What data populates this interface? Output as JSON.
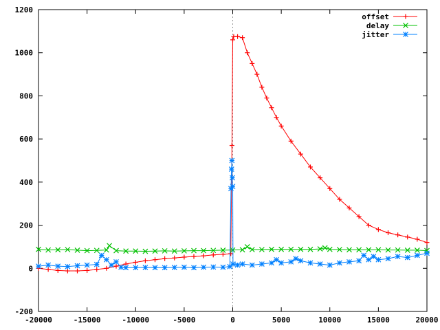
{
  "chart_data": {
    "type": "line",
    "title": "",
    "xlabel": "",
    "ylabel": "",
    "xlim": [
      -20000,
      20000
    ],
    "ylim": [
      -200,
      1200
    ],
    "x_ticks": [
      -20000,
      -15000,
      -10000,
      -5000,
      0,
      5000,
      10000,
      15000,
      20000
    ],
    "y_ticks": [
      -200,
      0,
      200,
      400,
      600,
      800,
      1000,
      1200
    ],
    "zero_line_x": 0,
    "grid": false,
    "legend": "top-right",
    "series": [
      {
        "name": "offset",
        "color": "#ff0000",
        "marker": "plus",
        "points": [
          [
            -20000,
            0
          ],
          [
            -19000,
            -5
          ],
          [
            -18000,
            -10
          ],
          [
            -17000,
            -12
          ],
          [
            -16000,
            -12
          ],
          [
            -15000,
            -10
          ],
          [
            -14000,
            -5
          ],
          [
            -13000,
            0
          ],
          [
            -12000,
            10
          ],
          [
            -11000,
            20
          ],
          [
            -10000,
            28
          ],
          [
            -9000,
            35
          ],
          [
            -8000,
            40
          ],
          [
            -7000,
            45
          ],
          [
            -6000,
            48
          ],
          [
            -5000,
            52
          ],
          [
            -4000,
            55
          ],
          [
            -3000,
            58
          ],
          [
            -2000,
            62
          ],
          [
            -1000,
            65
          ],
          [
            -200,
            68
          ],
          [
            -80,
            570
          ],
          [
            0,
            1060
          ],
          [
            100,
            1075
          ],
          [
            500,
            1075
          ],
          [
            1000,
            1070
          ],
          [
            1500,
            1000
          ],
          [
            2000,
            950
          ],
          [
            2500,
            900
          ],
          [
            3000,
            840
          ],
          [
            3500,
            790
          ],
          [
            4000,
            745
          ],
          [
            4500,
            700
          ],
          [
            5000,
            660
          ],
          [
            6000,
            590
          ],
          [
            7000,
            530
          ],
          [
            8000,
            470
          ],
          [
            9000,
            420
          ],
          [
            10000,
            370
          ],
          [
            11000,
            320
          ],
          [
            12000,
            280
          ],
          [
            13000,
            240
          ],
          [
            14000,
            200
          ],
          [
            15000,
            180
          ],
          [
            16000,
            165
          ],
          [
            17000,
            155
          ],
          [
            18000,
            145
          ],
          [
            19000,
            135
          ],
          [
            20000,
            120
          ]
        ]
      },
      {
        "name": "delay",
        "color": "#00c000",
        "marker": "x",
        "points": [
          [
            -20000,
            88
          ],
          [
            -19000,
            85
          ],
          [
            -18000,
            86
          ],
          [
            -17000,
            87
          ],
          [
            -16000,
            84
          ],
          [
            -15000,
            82
          ],
          [
            -14000,
            83
          ],
          [
            -13000,
            85
          ],
          [
            -12700,
            105
          ],
          [
            -12000,
            82
          ],
          [
            -11000,
            80
          ],
          [
            -10000,
            80
          ],
          [
            -9000,
            79
          ],
          [
            -8000,
            80
          ],
          [
            -7000,
            81
          ],
          [
            -6000,
            80
          ],
          [
            -5000,
            81
          ],
          [
            -4000,
            82
          ],
          [
            -3000,
            82
          ],
          [
            -2000,
            83
          ],
          [
            -1000,
            84
          ],
          [
            0,
            85
          ],
          [
            1000,
            86
          ],
          [
            1500,
            100
          ],
          [
            2000,
            87
          ],
          [
            3000,
            87
          ],
          [
            4000,
            88
          ],
          [
            5000,
            88
          ],
          [
            6000,
            88
          ],
          [
            7000,
            88
          ],
          [
            8000,
            88
          ],
          [
            9000,
            90
          ],
          [
            9500,
            95
          ],
          [
            10000,
            88
          ],
          [
            11000,
            87
          ],
          [
            12000,
            86
          ],
          [
            13000,
            86
          ],
          [
            14000,
            86
          ],
          [
            15000,
            86
          ],
          [
            16000,
            85
          ],
          [
            17000,
            85
          ],
          [
            18000,
            84
          ],
          [
            19000,
            84
          ],
          [
            20000,
            82
          ]
        ]
      },
      {
        "name": "jitter",
        "color": "#0080ff",
        "marker": "star",
        "points": [
          [
            -20000,
            10
          ],
          [
            -19000,
            15
          ],
          [
            -18000,
            10
          ],
          [
            -17000,
            8
          ],
          [
            -16000,
            12
          ],
          [
            -15000,
            15
          ],
          [
            -14000,
            18
          ],
          [
            -13500,
            60
          ],
          [
            -13000,
            40
          ],
          [
            -12500,
            15
          ],
          [
            -12000,
            30
          ],
          [
            -11500,
            5
          ],
          [
            -11000,
            3
          ],
          [
            -10000,
            3
          ],
          [
            -9000,
            4
          ],
          [
            -8000,
            3
          ],
          [
            -7000,
            3
          ],
          [
            -6000,
            4
          ],
          [
            -5000,
            5
          ],
          [
            -4000,
            3
          ],
          [
            -3000,
            5
          ],
          [
            -2000,
            6
          ],
          [
            -1000,
            5
          ],
          [
            -300,
            8
          ],
          [
            -180,
            370
          ],
          [
            -120,
            460
          ],
          [
            -80,
            500
          ],
          [
            -40,
            420
          ],
          [
            0,
            380
          ],
          [
            30,
            20
          ],
          [
            500,
            15
          ],
          [
            1000,
            20
          ],
          [
            2000,
            15
          ],
          [
            3000,
            20
          ],
          [
            4000,
            25
          ],
          [
            4500,
            40
          ],
          [
            5000,
            25
          ],
          [
            6000,
            30
          ],
          [
            6500,
            45
          ],
          [
            7000,
            35
          ],
          [
            8000,
            25
          ],
          [
            9000,
            20
          ],
          [
            10000,
            15
          ],
          [
            11000,
            25
          ],
          [
            12000,
            30
          ],
          [
            13000,
            35
          ],
          [
            13500,
            60
          ],
          [
            14000,
            40
          ],
          [
            14500,
            55
          ],
          [
            15000,
            40
          ],
          [
            16000,
            45
          ],
          [
            17000,
            55
          ],
          [
            18000,
            50
          ],
          [
            19000,
            60
          ],
          [
            20000,
            70
          ]
        ]
      }
    ]
  }
}
